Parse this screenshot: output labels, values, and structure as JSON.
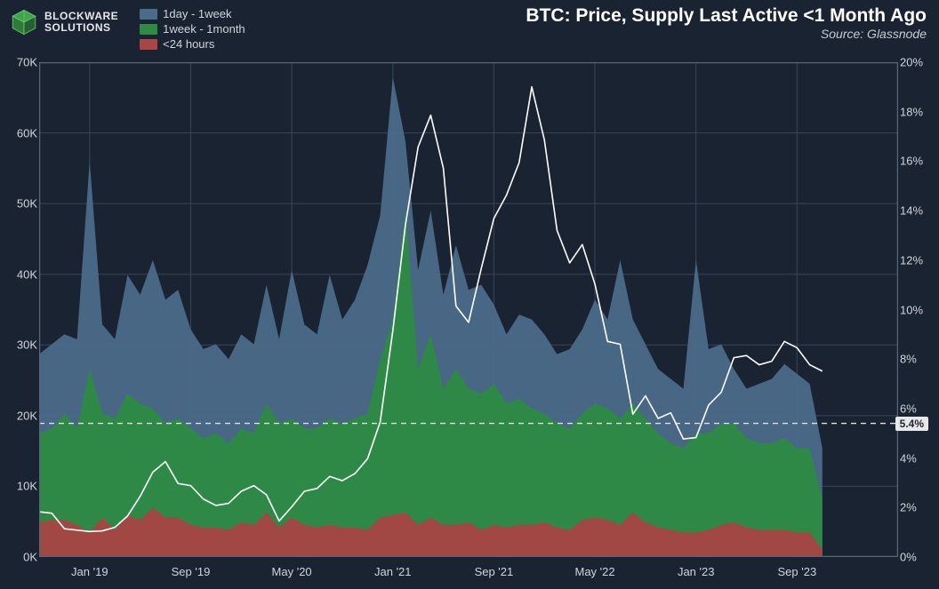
{
  "logo": {
    "line1": "BLOCKWARE",
    "line2": "SOLUTIONS",
    "cube_color": "#3fa648",
    "cube_stroke": "#6fc976"
  },
  "title": "BTC: Price, Supply Last Active <1 Month Ago",
  "source": "Source: Glassnode",
  "legend": [
    {
      "label": "1day - 1week",
      "color": "#4a6b8a"
    },
    {
      "label": "1week - 1month",
      "color": "#2e8b42"
    },
    {
      "label": "<24 hours",
      "color": "#a84545"
    }
  ],
  "background_color": "#1a2332",
  "plot_bg": "#1a2332",
  "grid_color": "#3a4558",
  "border_color": "#5a6578",
  "area_colors": {
    "blue": "#4a6b8a",
    "green": "#2e8b42",
    "red": "#a84545"
  },
  "price_line_color": "#ffffff",
  "price_line_width": 1.6,
  "dash_line": {
    "value_pct": 5.4,
    "label": "5.4%",
    "color": "#e0e0e0"
  },
  "y_left": {
    "min": 0,
    "max": 70000,
    "step": 10000,
    "ticks_fmt": [
      "0K",
      "10K",
      "20K",
      "30K",
      "40K",
      "50K",
      "60K",
      "70K"
    ]
  },
  "y_right": {
    "min": 0,
    "max": 20,
    "step": 2,
    "ticks_fmt": [
      "0%",
      "2%",
      "4%",
      "6%",
      "8%",
      "10%",
      "12%",
      "14%",
      "16%",
      "18%",
      "20%"
    ]
  },
  "x_axis": {
    "t_min": 0,
    "t_max": 68,
    "ticks": [
      {
        "t": 4,
        "label": "Jan '19"
      },
      {
        "t": 12,
        "label": "Sep '19"
      },
      {
        "t": 20,
        "label": "May '20"
      },
      {
        "t": 28,
        "label": "Jan '21"
      },
      {
        "t": 36,
        "label": "Sep '21"
      },
      {
        "t": 44,
        "label": "May '22"
      },
      {
        "t": 52,
        "label": "Jan '23"
      },
      {
        "t": 60,
        "label": "Sep '23"
      }
    ]
  },
  "series": {
    "sample_t": [
      0,
      1,
      2,
      3,
      4,
      5,
      6,
      7,
      8,
      9,
      10,
      11,
      12,
      13,
      14,
      15,
      16,
      17,
      18,
      19,
      20,
      21,
      22,
      23,
      24,
      25,
      26,
      27,
      28,
      29,
      30,
      31,
      32,
      33,
      34,
      35,
      36,
      37,
      38,
      39,
      40,
      41,
      42,
      43,
      44,
      45,
      46,
      47,
      48,
      49,
      50,
      51,
      52,
      53,
      54,
      55,
      56,
      57,
      58,
      59,
      60,
      61,
      62
    ],
    "red_pct": [
      1.4,
      1.5,
      1.5,
      1.3,
      1.0,
      1.6,
      1.1,
      1.7,
      1.5,
      2.0,
      1.6,
      1.6,
      1.3,
      1.2,
      1.2,
      1.1,
      1.4,
      1.3,
      1.8,
      1.2,
      1.6,
      1.3,
      1.2,
      1.3,
      1.2,
      1.2,
      1.1,
      1.6,
      1.7,
      1.8,
      1.3,
      1.6,
      1.3,
      1.3,
      1.4,
      1.1,
      1.3,
      1.2,
      1.3,
      1.3,
      1.4,
      1.2,
      1.1,
      1.5,
      1.6,
      1.5,
      1.3,
      1.8,
      1.4,
      1.2,
      1.1,
      1.0,
      1.0,
      1.1,
      1.3,
      1.4,
      1.2,
      1.1,
      1.1,
      1.1,
      1.0,
      1.0,
      0.3
    ],
    "green_pct": [
      5.0,
      5.2,
      5.8,
      5.2,
      7.6,
      5.8,
      5.6,
      6.6,
      6.2,
      6.0,
      5.4,
      5.6,
      5.2,
      4.8,
      5.0,
      4.6,
      5.2,
      5.0,
      6.2,
      5.4,
      5.6,
      5.2,
      5.2,
      5.6,
      5.4,
      5.6,
      5.8,
      8.0,
      9.6,
      14.0,
      7.6,
      9.0,
      6.8,
      7.6,
      6.8,
      6.6,
      7.0,
      6.2,
      6.4,
      6.0,
      5.8,
      5.4,
      5.2,
      5.8,
      6.2,
      6.0,
      5.6,
      6.2,
      5.6,
      5.0,
      4.6,
      4.4,
      5.0,
      5.0,
      5.4,
      5.4,
      4.8,
      4.6,
      4.6,
      4.8,
      4.4,
      4.4,
      2.4
    ],
    "blue_pct": [
      8.2,
      8.6,
      9.0,
      8.8,
      16.0,
      9.4,
      8.8,
      11.4,
      10.6,
      12.0,
      10.4,
      10.8,
      9.2,
      8.4,
      8.6,
      8.0,
      9.0,
      8.6,
      11.0,
      8.8,
      11.6,
      9.4,
      9.0,
      11.4,
      9.6,
      10.4,
      11.8,
      13.8,
      19.4,
      16.8,
      11.6,
      14.0,
      10.6,
      12.6,
      10.8,
      11.0,
      10.2,
      9.0,
      9.8,
      9.6,
      9.0,
      8.2,
      8.4,
      9.2,
      10.4,
      9.6,
      12.0,
      9.6,
      8.6,
      7.6,
      7.2,
      6.8,
      12.0,
      8.4,
      8.6,
      7.6,
      6.8,
      7.0,
      7.2,
      7.8,
      7.4,
      7.0,
      4.4
    ],
    "price": [
      6400,
      6200,
      4000,
      3800,
      3600,
      3700,
      4200,
      5800,
      8600,
      12000,
      13500,
      10400,
      10100,
      8200,
      7300,
      7600,
      9300,
      10100,
      8800,
      5100,
      7100,
      9300,
      9700,
      11400,
      10800,
      11800,
      13900,
      19100,
      32000,
      47000,
      58000,
      62500,
      55000,
      35500,
      33200,
      40800,
      47900,
      51200,
      55800,
      66500,
      59000,
      46200,
      41600,
      44200,
      38600,
      30500,
      30100,
      20200,
      22800,
      19600,
      20400,
      16700,
      16900,
      21500,
      23300,
      28200,
      28500,
      27200,
      27700,
      30500,
      29600,
      27200,
      26300
    ]
  },
  "label_fontsize": 13,
  "title_fontsize": 21
}
